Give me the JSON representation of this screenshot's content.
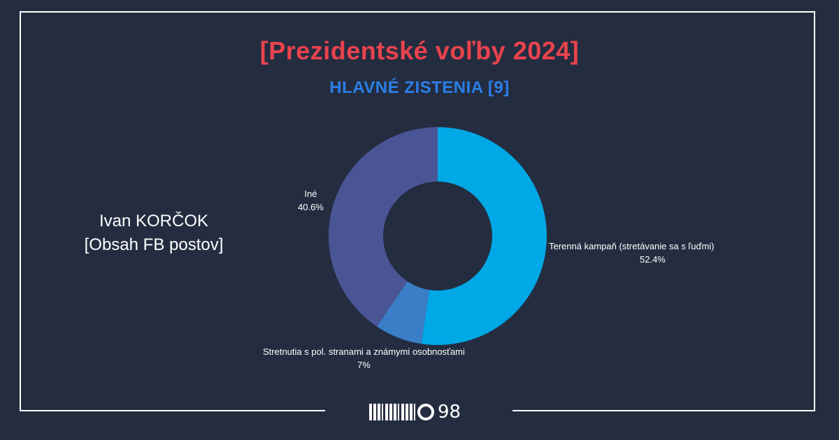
{
  "header": {
    "title": "[Prezidentské voľby 2024]",
    "subtitle": "HLAVNÉ ZISTENIA [9]"
  },
  "person": {
    "name": "Ivan KORČOK",
    "subject": "[Obsah FB postov]"
  },
  "chart_data": {
    "type": "pie",
    "donut": true,
    "categories": [
      "Terenná kampaň (stretávanie sa s ľuďmi)",
      "Stretnutia s pol. stranami a známymi osobnosťami",
      "Iné"
    ],
    "values": [
      52.4,
      7,
      40.6
    ],
    "value_labels": [
      "52.4%",
      "7%",
      "40.6%"
    ],
    "colors": [
      "#00a8e6",
      "#3a7ec8",
      "#4a5596"
    ]
  },
  "footer": {
    "logo_number": "98"
  }
}
